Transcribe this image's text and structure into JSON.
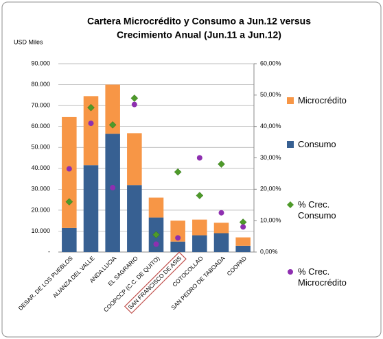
{
  "chart_data": {
    "type": "bar",
    "title": [
      "Cartera Microcrédito y Consumo  a Jun.12 versus",
      "Crecimiento Anual (Jun.11 a Jun.12)"
    ],
    "y_axis_label": "USD Miles",
    "categories": [
      "DESAR. DE LOS PUEBLOS",
      "ALIANZA DEL VALLE",
      "ANDA LUCIA",
      "EL SAGRARIO",
      "COOPCCP (C.C. DE QUITO)",
      "SAN FRANCISCO DE ASIS",
      "COTOCOLLAO",
      "SAN PEDRO DE TABOADA",
      "COOPAD"
    ],
    "series": [
      {
        "name": "Consumo",
        "type": "bar",
        "color": "#376092",
        "values": [
          11500,
          41500,
          56500,
          32000,
          16500,
          5000,
          8000,
          9000,
          3000
        ]
      },
      {
        "name": "Microcrédito",
        "type": "bar",
        "color": "#f79646",
        "values": [
          53000,
          33000,
          23500,
          24800,
          9500,
          10000,
          7500,
          5000,
          4000
        ]
      },
      {
        "name": "% Crec. Consumo",
        "type": "scatter",
        "marker": "diamond",
        "axis": "y2",
        "color": "#4e9a2a",
        "values": [
          16,
          46,
          40.5,
          49,
          5.5,
          25.5,
          18,
          28,
          9.5
        ]
      },
      {
        "name": "% Crec. Microcrédito",
        "type": "scatter",
        "marker": "circle",
        "axis": "y2",
        "color": "#8e2fb0",
        "values": [
          26.5,
          41,
          20.5,
          47,
          2.5,
          4.5,
          30,
          12.5,
          8
        ]
      }
    ],
    "legend_order": [
      1,
      0,
      2,
      3
    ],
    "ylim": [
      0,
      90000
    ],
    "yticks": [
      {
        "value": 0,
        "label": "-"
      },
      {
        "value": 10000,
        "label": "10.000"
      },
      {
        "value": 20000,
        "label": "20.000"
      },
      {
        "value": 30000,
        "label": "30.000"
      },
      {
        "value": 40000,
        "label": "40.000"
      },
      {
        "value": 50000,
        "label": "50.000"
      },
      {
        "value": 60000,
        "label": "60.000"
      },
      {
        "value": 70000,
        "label": "70.000"
      },
      {
        "value": 80000,
        "label": "80.000"
      },
      {
        "value": 90000,
        "label": "90.000"
      }
    ],
    "y2lim": [
      0,
      60
    ],
    "y2ticks": [
      {
        "value": 0,
        "label": "0,00%"
      },
      {
        "value": 10,
        "label": "10,00%"
      },
      {
        "value": 20,
        "label": "20,00%"
      },
      {
        "value": 30,
        "label": "30,00%"
      },
      {
        "value": 40,
        "label": "40,00%"
      },
      {
        "value": 50,
        "label": "50,00%"
      },
      {
        "value": 60,
        "label": "60,00%"
      }
    ],
    "grid": true,
    "legend": "right"
  }
}
